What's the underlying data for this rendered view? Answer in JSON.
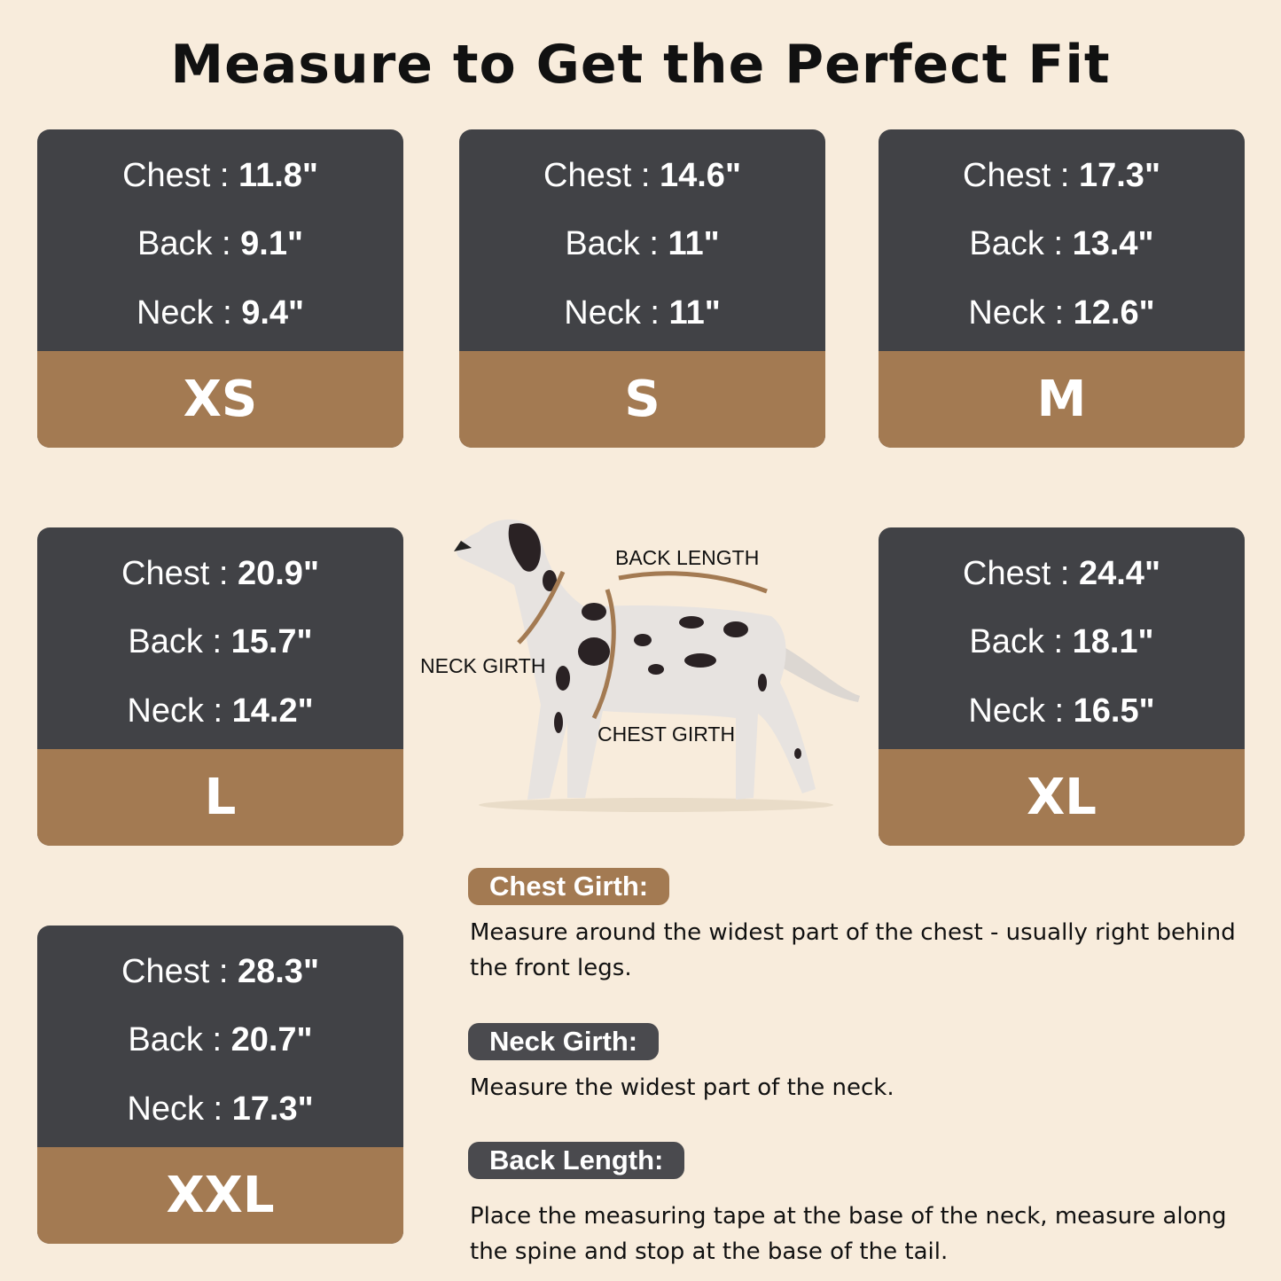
{
  "title": "Measure to Get the Perfect Fit",
  "colors": {
    "background": "#f8ecdc",
    "card_dark": "#414246",
    "accent_brown": "#a37a52"
  },
  "labels": {
    "chest": "Chest",
    "back": "Back",
    "neck": "Neck",
    "separator": " : "
  },
  "sizes": [
    {
      "size": "XS",
      "chest": "11.8\"",
      "back": "9.1\"",
      "neck": "9.4\""
    },
    {
      "size": "S",
      "chest": "14.6\"",
      "back": "11\"",
      "neck": "11\""
    },
    {
      "size": "M",
      "chest": "17.3\"",
      "back": "13.4\"",
      "neck": "12.6\""
    },
    {
      "size": "L",
      "chest": "20.9\"",
      "back": "15.7\"",
      "neck": "14.2\""
    },
    {
      "size": "XL",
      "chest": "24.4\"",
      "back": "18.1\"",
      "neck": "16.5\""
    },
    {
      "size": "XXL",
      "chest": "28.3\"",
      "back": "20.7\"",
      "neck": "17.3\""
    }
  ],
  "diagram": {
    "back_length": "BACK LENGTH",
    "neck_girth": "NECK GIRTH",
    "chest_girth": "CHEST GIRTH"
  },
  "instructions": [
    {
      "heading": "Chest Girth:",
      "text": "Measure around the widest part of the chest - usually right behind the front legs."
    },
    {
      "heading": "Neck Girth:",
      "text": "Measure the widest part of the neck."
    },
    {
      "heading": "Back Length:",
      "text": "Place the measuring tape at the base of the neck, measure along the spine and stop at the base of the tail."
    }
  ]
}
